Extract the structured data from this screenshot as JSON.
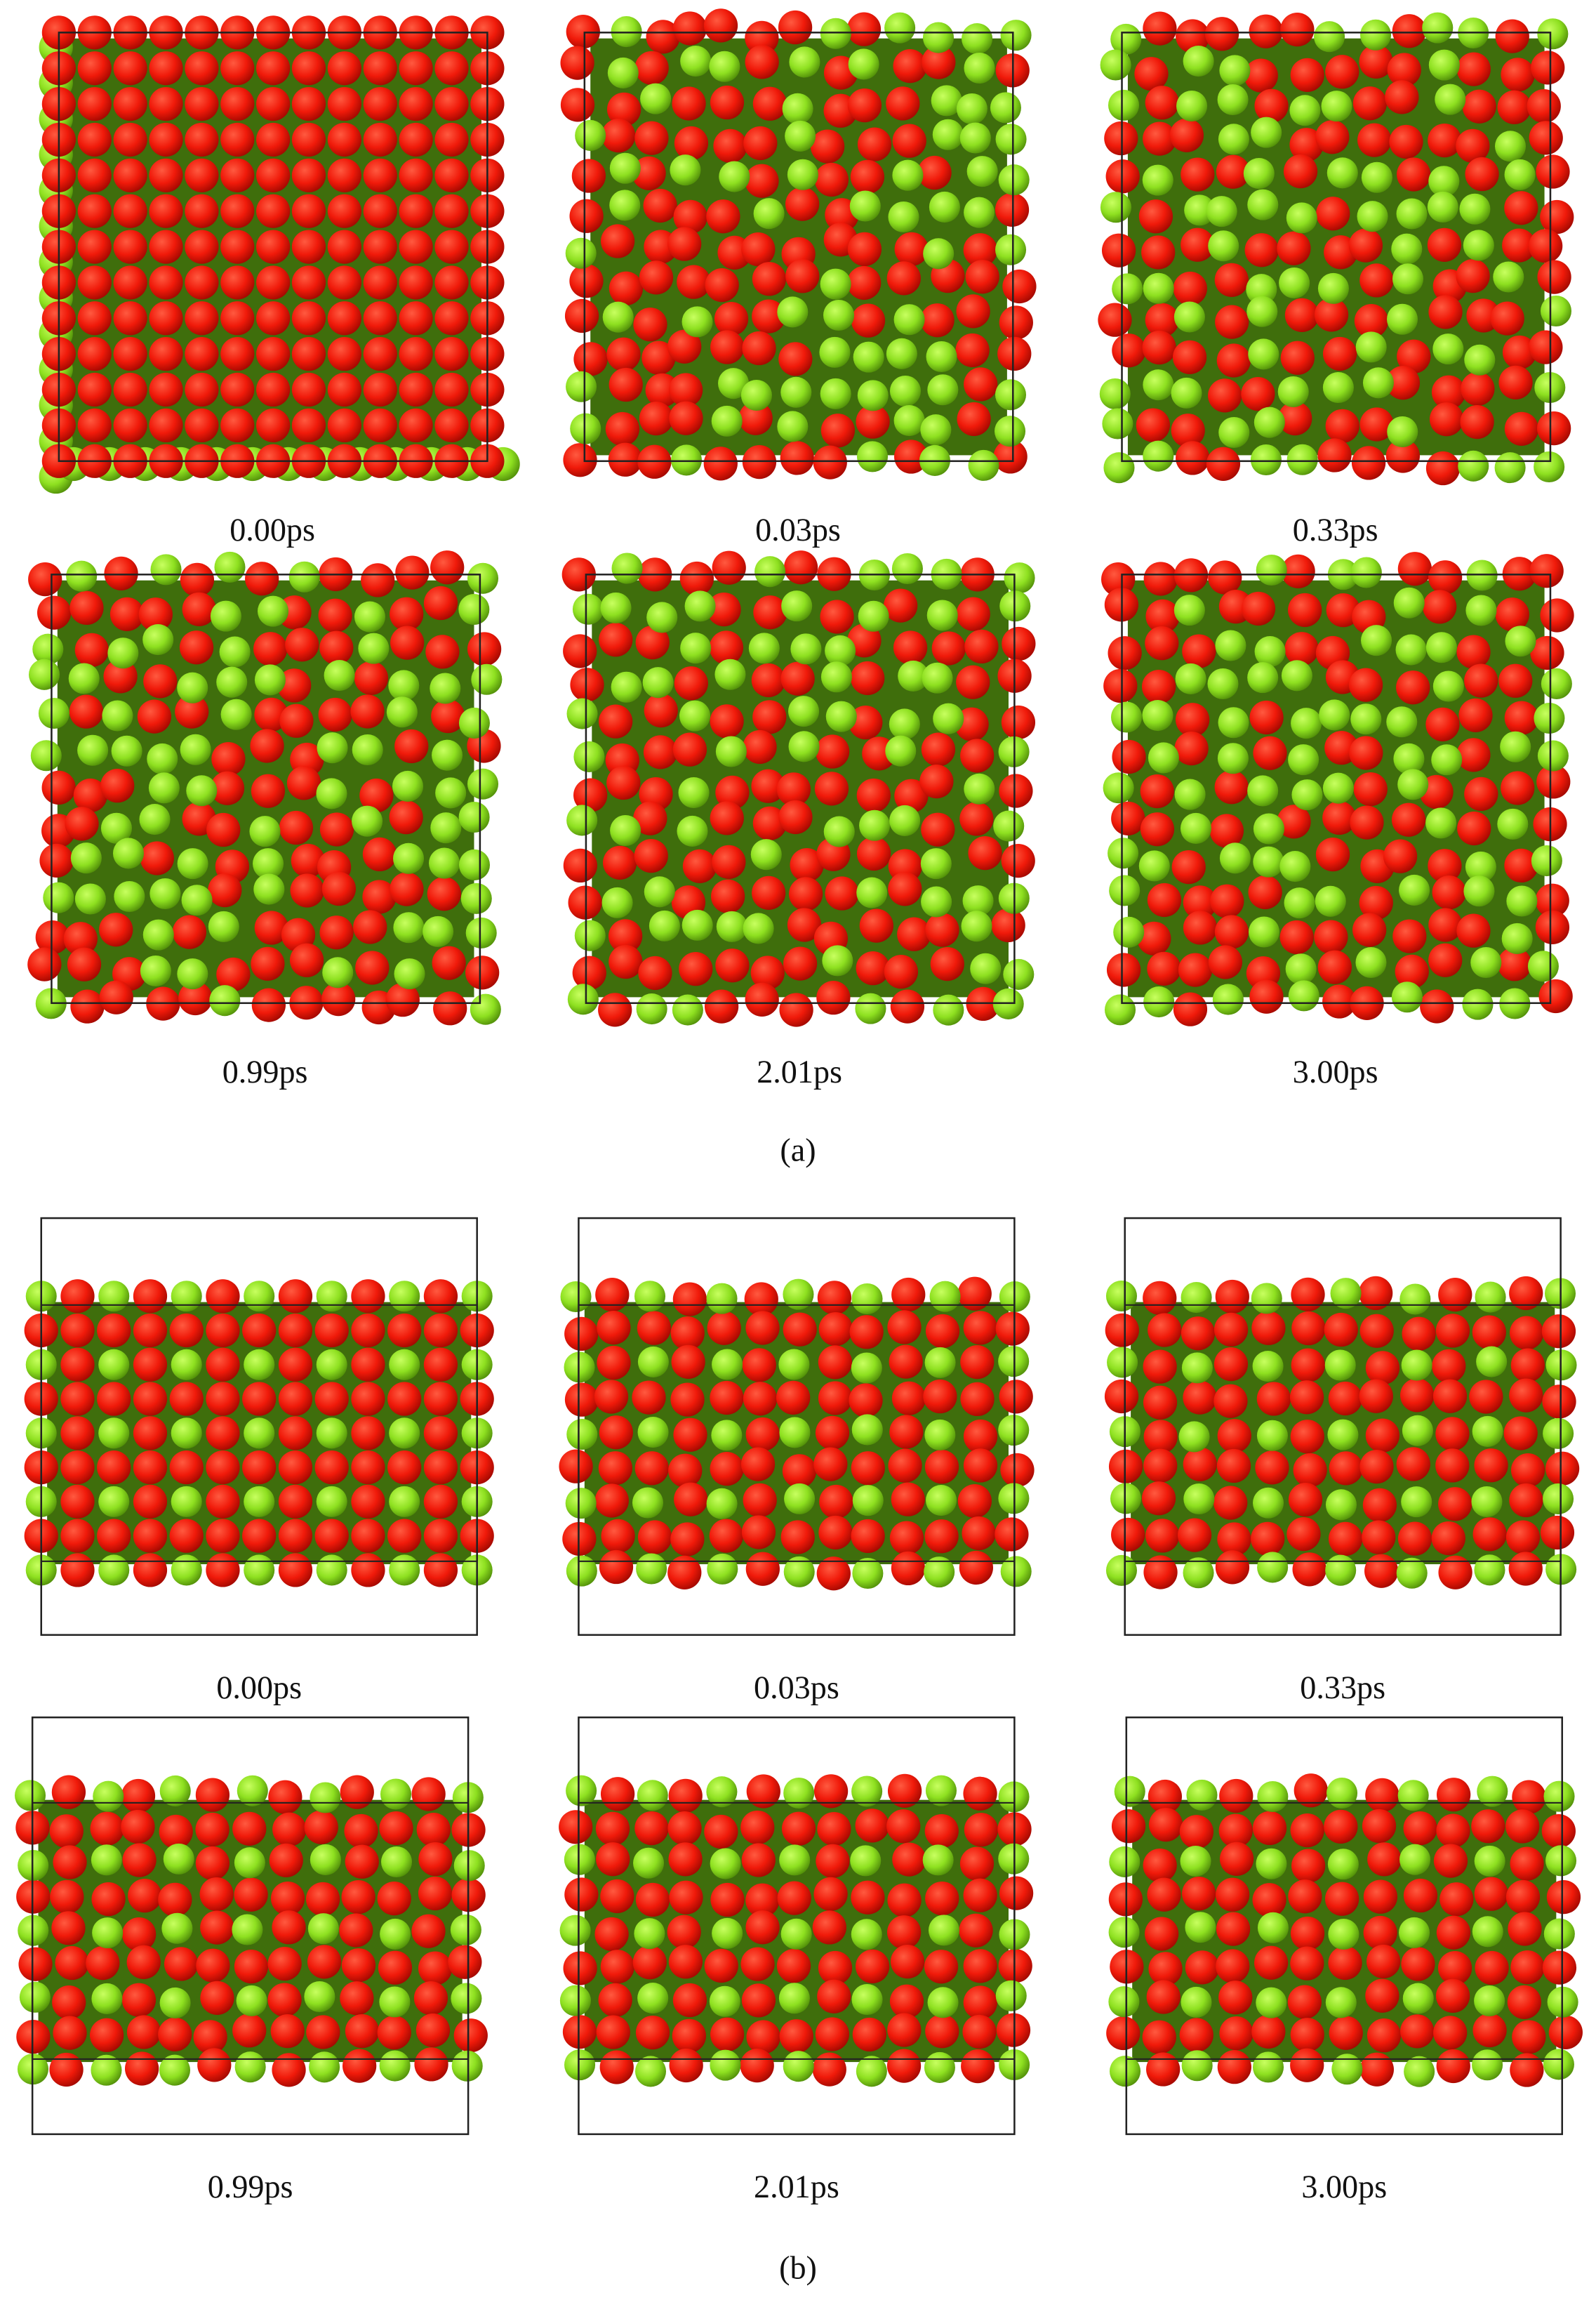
{
  "figure": {
    "panels": [
      {
        "label": "(a)",
        "snapshots": [
          "0.00ps",
          "0.03ps",
          "0.33ps",
          "0.99ps",
          "2.01ps",
          "3.00ps"
        ]
      },
      {
        "label": "(b)",
        "snapshots": [
          "0.00ps",
          "0.03ps",
          "0.33ps",
          "0.99ps",
          "2.01ps",
          "3.00ps"
        ]
      }
    ]
  }
}
